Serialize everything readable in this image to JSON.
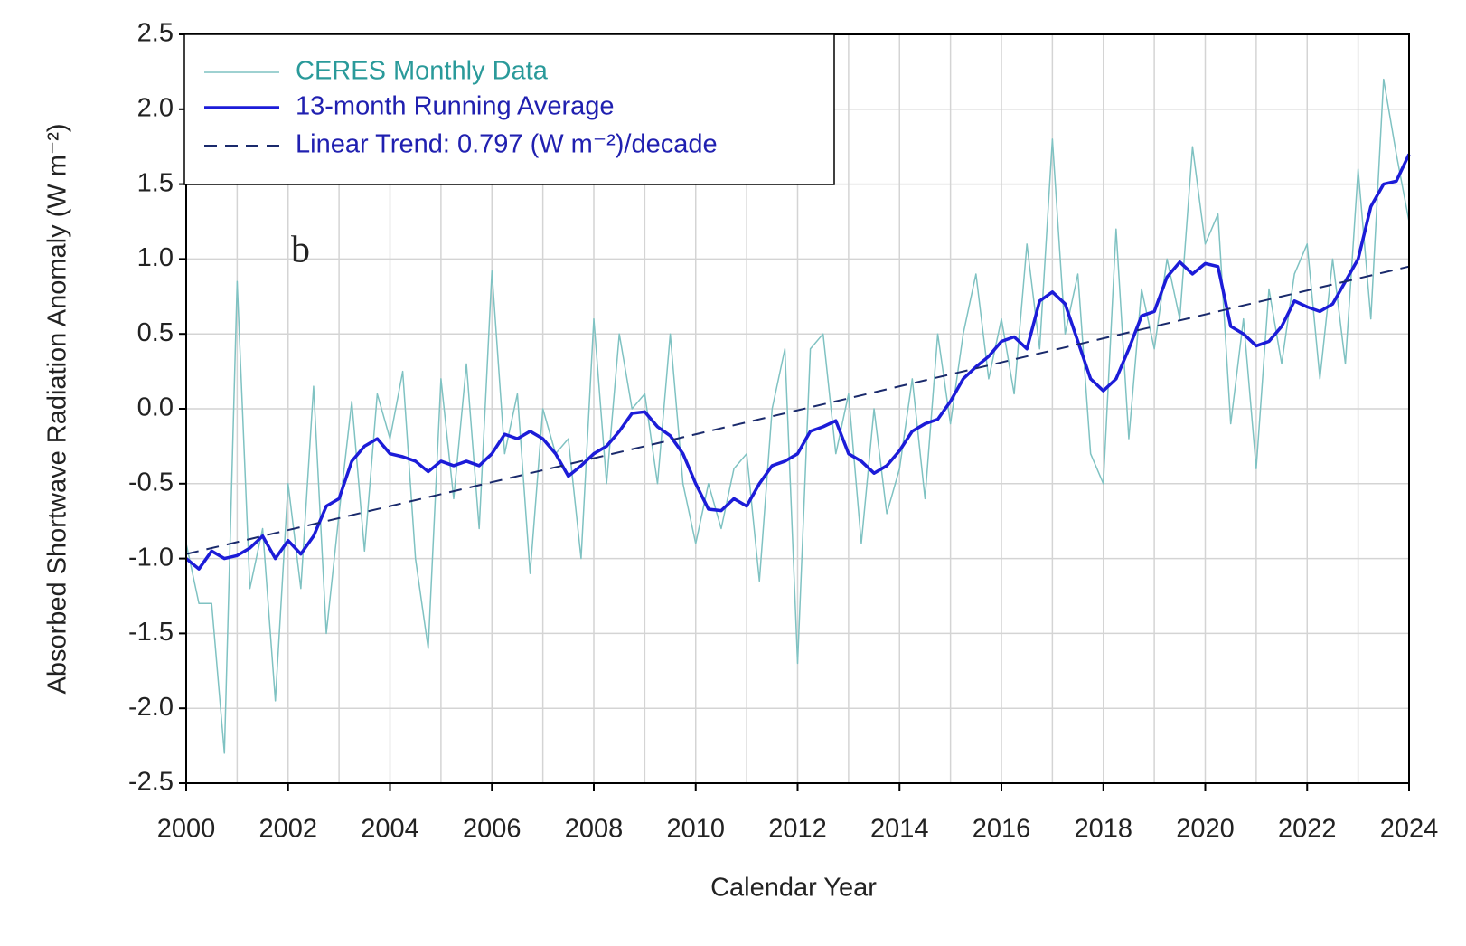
{
  "chart_data": {
    "type": "line",
    "annotations": [
      "b"
    ],
    "xlabel": "Calendar Year",
    "ylabel": "Absorbed Shortwave Radiation Anomaly (W m⁻²)",
    "xlim": [
      2000,
      2024
    ],
    "xticks": [
      2000,
      2002,
      2004,
      2006,
      2008,
      2010,
      2012,
      2014,
      2016,
      2018,
      2020,
      2022,
      2024
    ],
    "xminorticks": [
      2001,
      2003,
      2005,
      2007,
      2009,
      2011,
      2013,
      2015,
      2017,
      2019,
      2021,
      2023
    ],
    "ylim": [
      -2.5,
      2.5
    ],
    "yticks": [
      {
        "value": -2.5,
        "label": "-2.5"
      },
      {
        "value": -2,
        "label": "-2.0"
      },
      -1.5,
      {
        "value": -1,
        "label": "-1.0"
      },
      -0.5,
      {
        "value": 0,
        "label": "0.0"
      },
      0.5,
      {
        "value": 1,
        "label": "1.0"
      },
      1.5,
      {
        "value": 2,
        "label": "2.0"
      },
      2.5
    ],
    "grid": true,
    "legend": "upper left",
    "x": [
      2000,
      2000.25,
      2000.5,
      2000.75,
      2001,
      2001.25,
      2001.5,
      2001.75,
      2002,
      2002.25,
      2002.5,
      2002.75,
      2003,
      2003.25,
      2003.5,
      2003.75,
      2004,
      2004.25,
      2004.5,
      2004.75,
      2005,
      2005.25,
      2005.5,
      2005.75,
      2006,
      2006.25,
      2006.5,
      2006.75,
      2007,
      2007.25,
      2007.5,
      2007.75,
      2008,
      2008.25,
      2008.5,
      2008.75,
      2009,
      2009.25,
      2009.5,
      2009.75,
      2010,
      2010.25,
      2010.5,
      2010.75,
      2011,
      2011.25,
      2011.5,
      2011.75,
      2012,
      2012.25,
      2012.5,
      2012.75,
      2013,
      2013.25,
      2013.5,
      2013.75,
      2014,
      2014.25,
      2014.5,
      2014.75,
      2015,
      2015.25,
      2015.5,
      2015.75,
      2016,
      2016.25,
      2016.5,
      2016.75,
      2017,
      2017.25,
      2017.5,
      2017.75,
      2018,
      2018.25,
      2018.5,
      2018.75,
      2019,
      2019.25,
      2019.5,
      2019.75,
      2020,
      2020.25,
      2020.5,
      2020.75,
      2021,
      2021.25,
      2021.5,
      2021.75,
      2022,
      2022.25,
      2022.5,
      2022.75,
      2023,
      2023.25,
      2023.5,
      2023.75,
      2024
    ],
    "series": [
      {
        "name": "CERES Monthly Data",
        "color": "#7fc2c2",
        "width": 1.5,
        "values": [
          -0.9,
          -1.3,
          -1.3,
          -2.3,
          0.85,
          -1.2,
          -0.8,
          -1.95,
          -0.5,
          -1.2,
          0.15,
          -1.5,
          -0.7,
          0.05,
          -0.95,
          0.1,
          -0.2,
          0.25,
          -1.0,
          -1.6,
          0.2,
          -0.6,
          0.3,
          -0.8,
          0.92,
          -0.3,
          0.1,
          -1.1,
          0.0,
          -0.3,
          -0.2,
          -1.0,
          0.6,
          -0.5,
          0.5,
          0.0,
          0.1,
          -0.5,
          0.5,
          -0.5,
          -0.9,
          -0.5,
          -0.8,
          -0.4,
          -0.3,
          -1.15,
          0.0,
          0.4,
          -1.7,
          0.4,
          0.5,
          -0.3,
          0.1,
          -0.9,
          0.0,
          -0.7,
          -0.4,
          0.2,
          -0.6,
          0.5,
          -0.1,
          0.5,
          0.9,
          0.2,
          0.6,
          0.1,
          1.1,
          0.4,
          1.8,
          0.5,
          0.9,
          -0.3,
          -0.5,
          1.2,
          -0.2,
          0.8,
          0.4,
          1.0,
          0.6,
          1.75,
          1.1,
          1.3,
          -0.1,
          0.6,
          -0.4,
          0.8,
          0.3,
          0.9,
          1.1,
          0.2,
          1.0,
          0.3,
          1.6,
          0.6,
          2.2,
          1.7,
          1.25
        ]
      },
      {
        "name": "13-month Running Average",
        "color": "#1c1cd8",
        "width": 3.5,
        "values": [
          -1.0,
          -1.07,
          -0.95,
          -1.0,
          -0.98,
          -0.93,
          -0.85,
          -1.0,
          -0.88,
          -0.97,
          -0.85,
          -0.65,
          -0.6,
          -0.35,
          -0.25,
          -0.2,
          -0.3,
          -0.32,
          -0.35,
          -0.42,
          -0.35,
          -0.38,
          -0.35,
          -0.38,
          -0.3,
          -0.17,
          -0.2,
          -0.15,
          -0.2,
          -0.3,
          -0.45,
          -0.38,
          -0.3,
          -0.25,
          -0.15,
          -0.03,
          -0.02,
          -0.12,
          -0.18,
          -0.3,
          -0.5,
          -0.67,
          -0.68,
          -0.6,
          -0.65,
          -0.5,
          -0.38,
          -0.35,
          -0.3,
          -0.15,
          -0.12,
          -0.08,
          -0.3,
          -0.35,
          -0.43,
          -0.38,
          -0.28,
          -0.15,
          -0.1,
          -0.07,
          0.05,
          0.2,
          0.28,
          0.35,
          0.45,
          0.48,
          0.4,
          0.72,
          0.78,
          0.7,
          0.45,
          0.2,
          0.12,
          0.2,
          0.4,
          0.62,
          0.65,
          0.88,
          0.98,
          0.9,
          0.97,
          0.95,
          0.55,
          0.5,
          0.42,
          0.45,
          0.55,
          0.72,
          0.68,
          0.65,
          0.7,
          0.85,
          1.0,
          1.35,
          1.5,
          1.52,
          1.7
        ]
      },
      {
        "name": "Linear Trend: 0.797 (W m⁻²)/decade",
        "color": "#1a2a6c",
        "width": 2,
        "linestyle": "dashed",
        "x": [
          2000,
          2024
        ],
        "values": [
          -0.97,
          0.95
        ]
      }
    ]
  }
}
